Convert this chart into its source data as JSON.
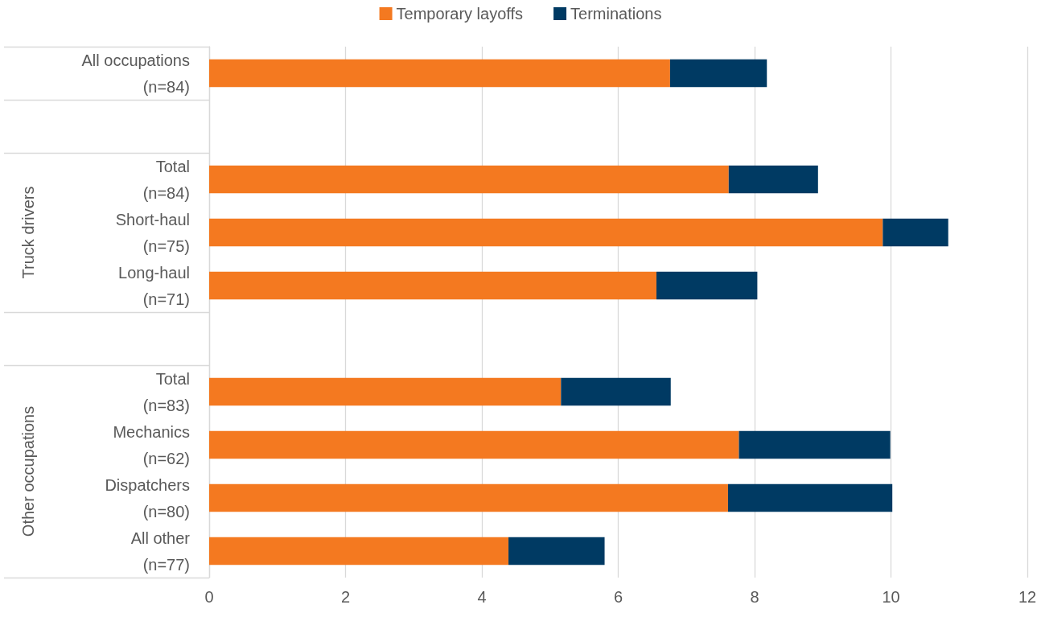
{
  "chart_data": {
    "type": "bar",
    "orientation": "horizontal",
    "stacked": true,
    "categories": [
      "All occupations (n=84)",
      null,
      "Total (n=84)",
      "Short-haul (n=75)",
      "Long-haul (n=71)",
      null,
      "Total (n=83)",
      "Mechanics (n=62)",
      "Dispatchers (n=80)",
      "All other (n=77)"
    ],
    "series": [
      {
        "name": "Temporary layoffs",
        "color": "#f47920",
        "values": [
          6.76,
          null,
          7.62,
          9.88,
          6.56,
          null,
          5.16,
          7.77,
          7.61,
          4.39
        ]
      },
      {
        "name": "Terminations",
        "color": "#003a63",
        "values": [
          1.42,
          null,
          1.31,
          0.96,
          1.48,
          null,
          1.61,
          2.22,
          2.41,
          1.41
        ]
      }
    ],
    "xlim": [
      0,
      12
    ],
    "xticks": [
      0,
      2,
      4,
      6,
      8,
      10,
      12
    ],
    "grid": "x",
    "legend": "top",
    "annotations": [
      "Truck drivers",
      "Other occupations"
    ]
  }
}
